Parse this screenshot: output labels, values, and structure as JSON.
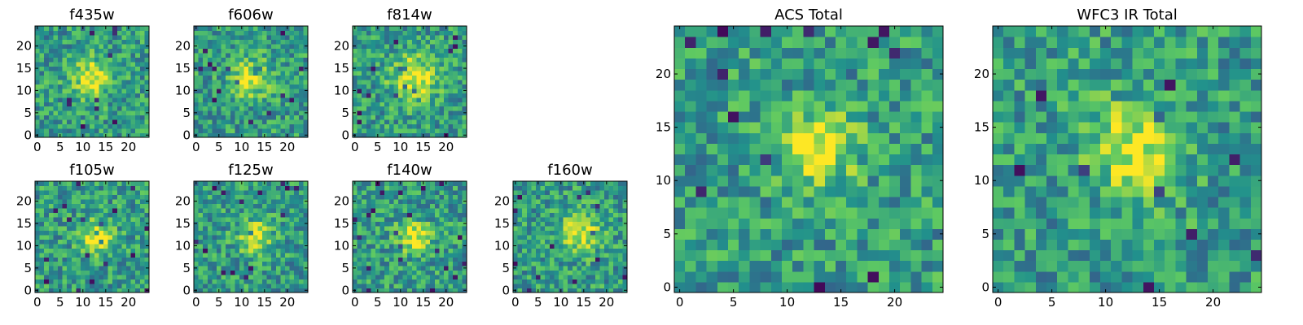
{
  "figure": {
    "colormap": [
      "#440154",
      "#3b528b",
      "#21918c",
      "#5ec962",
      "#fde725"
    ],
    "panels": [
      {
        "id": "f435w",
        "title": "f435w",
        "seed": 11,
        "blob": [
          12,
          13,
          3.0
        ],
        "xticks": [
          "0",
          "5",
          "10",
          "15",
          "20"
        ],
        "yticks": [
          "0",
          "5",
          "10",
          "15",
          "20"
        ]
      },
      {
        "id": "f606w",
        "title": "f606w",
        "seed": 23,
        "blob": [
          12,
          13,
          3.0
        ],
        "xticks": [
          "0",
          "5",
          "10",
          "15",
          "20"
        ],
        "yticks": [
          "0",
          "5",
          "10",
          "15",
          "20"
        ]
      },
      {
        "id": "f814w",
        "title": "f814w",
        "seed": 37,
        "blob": [
          13,
          13,
          3.5
        ],
        "xticks": [
          "0",
          "5",
          "10",
          "15",
          "20"
        ],
        "yticks": [
          "0",
          "5",
          "10",
          "15",
          "20"
        ]
      },
      {
        "id": "f105w",
        "title": "f105w",
        "seed": 41,
        "blob": [
          13,
          12,
          2.5
        ],
        "xticks": [
          "0",
          "5",
          "10",
          "15",
          "20"
        ],
        "yticks": [
          "0",
          "5",
          "10",
          "15",
          "20"
        ]
      },
      {
        "id": "f125w",
        "title": "f125w",
        "seed": 53,
        "blob": [
          13,
          12,
          2.5
        ],
        "xticks": [
          "0",
          "5",
          "10",
          "15",
          "20"
        ],
        "yticks": [
          "0",
          "5",
          "10",
          "15",
          "20"
        ]
      },
      {
        "id": "f140w",
        "title": "f140w",
        "seed": 67,
        "blob": [
          13,
          12,
          2.5
        ],
        "xticks": [
          "0",
          "5",
          "10",
          "15",
          "20"
        ],
        "yticks": [
          "0",
          "5",
          "10",
          "15",
          "20"
        ]
      },
      {
        "id": "f160w",
        "title": "f160w",
        "seed": 79,
        "blob": [
          14,
          13,
          3.0
        ],
        "xticks": [
          "0",
          "5",
          "10",
          "15",
          "20"
        ],
        "yticks": [
          "0",
          "5",
          "10",
          "15",
          "20"
        ]
      },
      {
        "id": "acs-total",
        "title": "ACS Total",
        "seed": 97,
        "blob": [
          13,
          13,
          2.5
        ],
        "xticks": [
          "0",
          "5",
          "10",
          "15",
          "20"
        ],
        "yticks": [
          "0",
          "5",
          "10",
          "15",
          "20"
        ]
      },
      {
        "id": "wfc3-ir-total",
        "title": "WFC3 IR Total",
        "seed": 131,
        "blob": [
          13,
          13,
          3.0
        ],
        "xticks": [
          "0",
          "5",
          "10",
          "15",
          "20"
        ],
        "yticks": [
          "0",
          "5",
          "10",
          "15",
          "20"
        ]
      }
    ]
  }
}
